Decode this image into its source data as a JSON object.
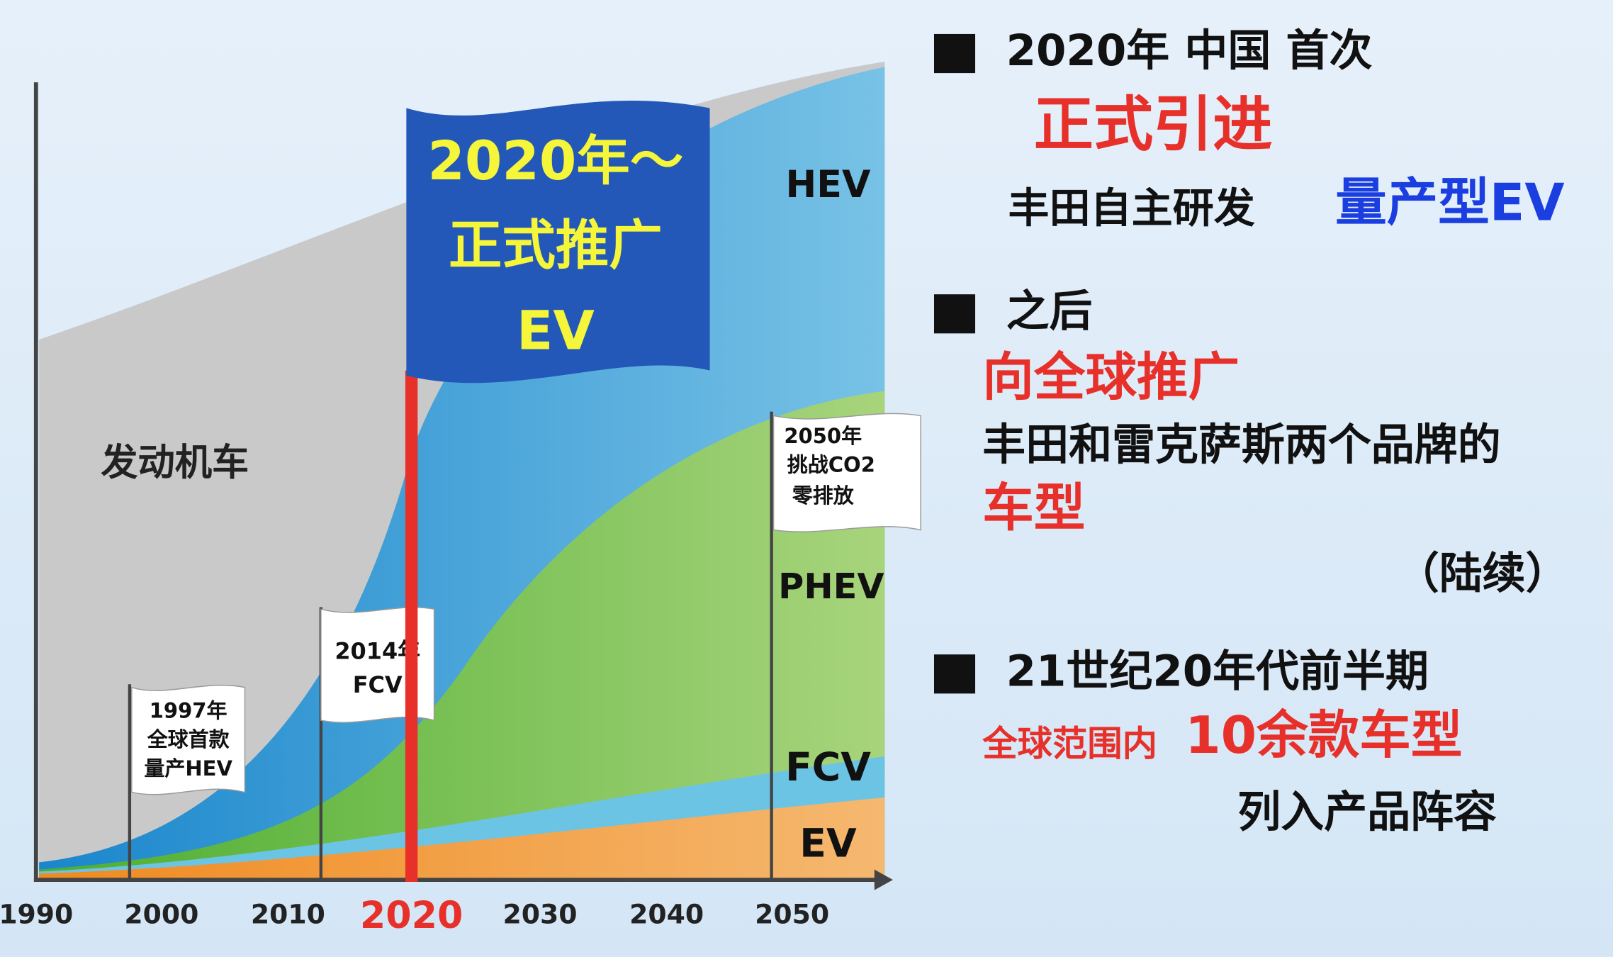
{
  "x_axis": {
    "labels": [
      "1990",
      "2000",
      "2010",
      "2020",
      "2030",
      "2040",
      "2050"
    ]
  },
  "areas": {
    "engine": "发动机车",
    "hev": "HEV",
    "phev": "PHEV",
    "fcv": "FCV",
    "ev": "EV"
  },
  "main_flag": {
    "lines": [
      "2020年～",
      "正式推广",
      "EV"
    ]
  },
  "flags": [
    {
      "lines": [
        "1997年",
        "全球首款",
        "量产HEV"
      ]
    },
    {
      "lines": [
        "2014年",
        "FCV"
      ]
    },
    {
      "lines": [
        "2050年",
        "挑战CO2",
        "零排放"
      ]
    }
  ],
  "points": [
    {
      "heading": "2020年 中国 首次",
      "highlight": "正式引进",
      "text": "丰田自主研发",
      "emphasis": "量产型EV"
    },
    {
      "heading": "之后",
      "highlight": "向全球推广",
      "text": "丰田和雷克萨斯两个品牌的",
      "emphasis": "车型",
      "note": "（陆续）"
    },
    {
      "heading": "21世纪20年代前半期",
      "prefix": "全球范围内",
      "highlight": "10余款车型",
      "text": "列入产品阵容"
    }
  ]
}
